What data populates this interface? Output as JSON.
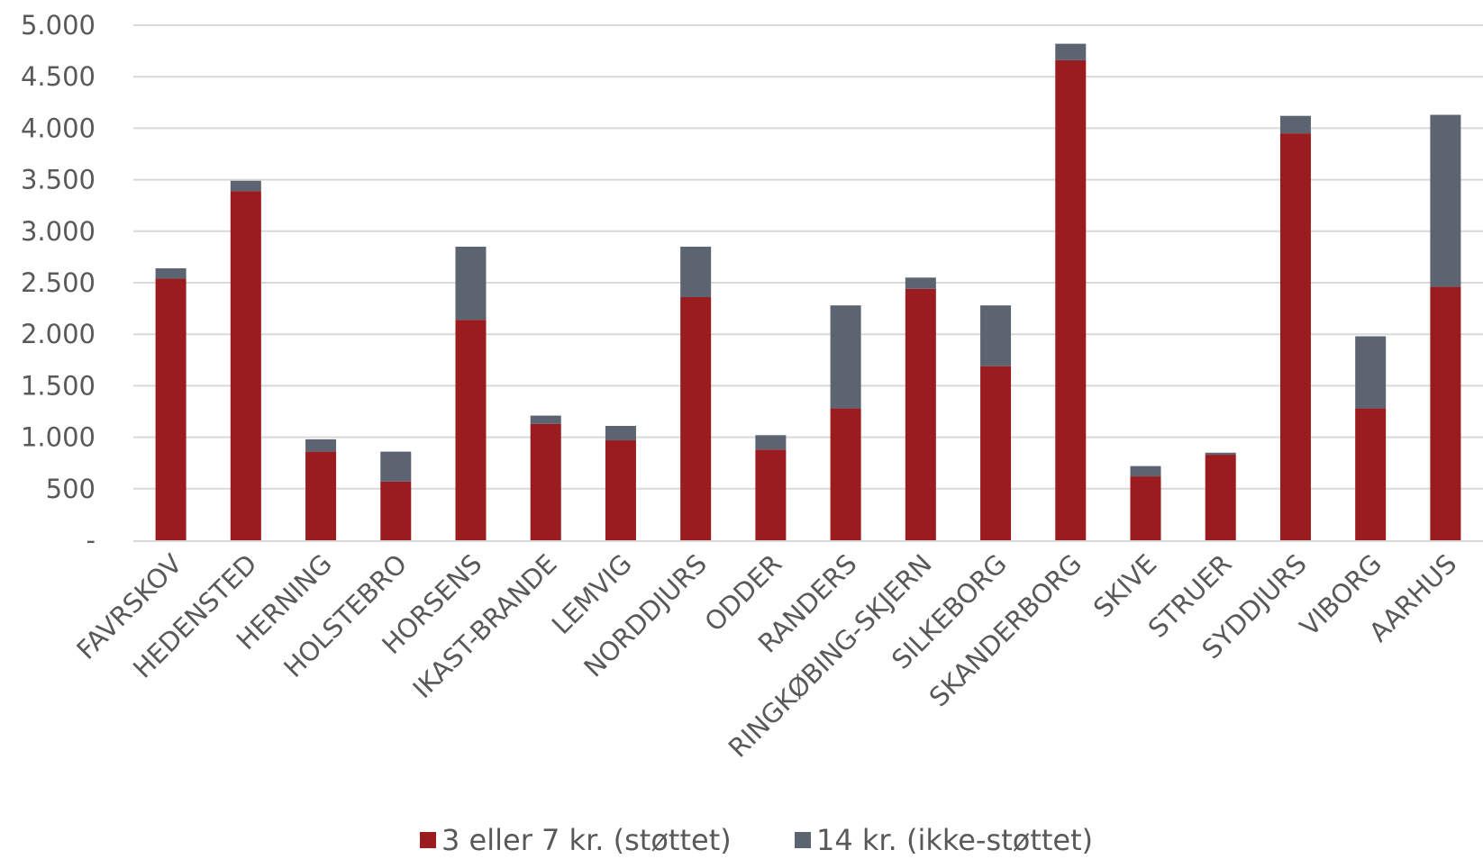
{
  "chart_data": {
    "type": "bar",
    "stacked": true,
    "categories": [
      "FAVRSKOV",
      "HEDENSTED",
      "HERNING",
      "HOLSTEBRO",
      "HORSENS",
      "IKAST-BRANDE",
      "LEMVIG",
      "NORDDJURS",
      "ODDER",
      "RANDERS",
      "RINGKØBING-SKJERN",
      "SILKEBORG",
      "SKANDERBORG",
      "SKIVE",
      "STRUER",
      "SYDDJURS",
      "VIBORG",
      "AARHUS"
    ],
    "series": [
      {
        "name": "3 eller 7 kr. (støttet)",
        "color": "#9b1c1f",
        "values": [
          2540,
          3390,
          860,
          570,
          2140,
          1130,
          970,
          2360,
          880,
          1280,
          2440,
          1690,
          4660,
          620,
          830,
          3950,
          1280,
          2460
        ]
      },
      {
        "name": "14 kr. (ikke-støttet)",
        "color": "#5b6470",
        "values": [
          100,
          100,
          120,
          290,
          710,
          80,
          140,
          490,
          140,
          1000,
          110,
          590,
          160,
          100,
          20,
          170,
          700,
          1670
        ]
      }
    ],
    "ylim": [
      0,
      5000
    ],
    "yticks": [
      0,
      500,
      1000,
      1500,
      2000,
      2500,
      3000,
      3500,
      4000,
      4500,
      5000
    ],
    "ytick_labels": [
      "-",
      "500",
      "1.000",
      "1.500",
      "2.000",
      "2.500",
      "3.000",
      "3.500",
      "4.000",
      "4.500",
      "5.000"
    ],
    "grid": true,
    "legend_position": "bottom",
    "xlabel": "",
    "ylabel": "",
    "title": ""
  }
}
